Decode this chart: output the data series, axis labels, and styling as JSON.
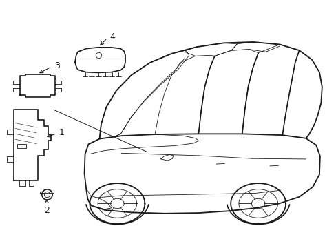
{
  "bg_color": "#ffffff",
  "line_color": "#1a1a1a",
  "lw_main": 1.2,
  "lw_thin": 0.6,
  "lw_connector": 0.7,
  "label_fontsize": 9,
  "fig_w": 4.89,
  "fig_h": 3.6,
  "dpi": 100
}
